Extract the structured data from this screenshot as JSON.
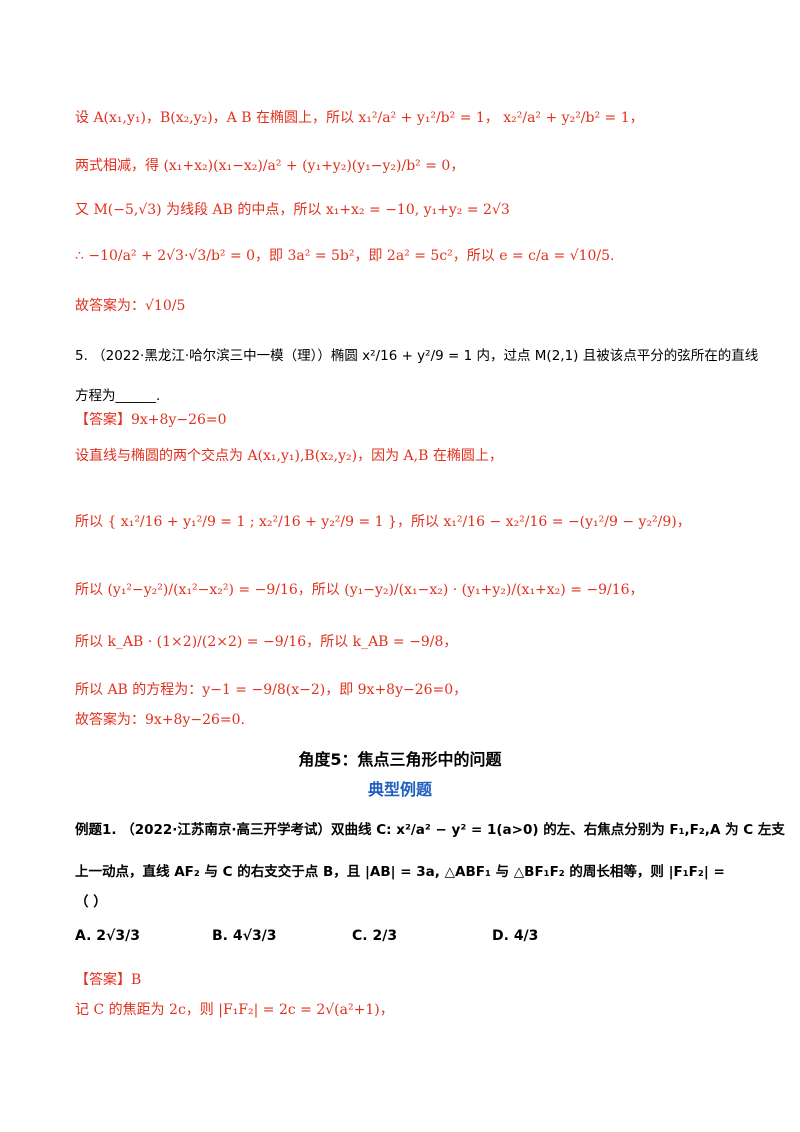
{
  "lines": {
    "l1": "设 A(x₁,y₁)，B(x₂,y₂)，A B 在椭圆上，所以 x₁²/a² + y₁²/b² = 1， x₂²/a² + y₂²/b² = 1，",
    "l2": "两式相减，得 (x₁+x₂)(x₁−x₂)/a² + (y₁+y₂)(y₁−y₂)/b² = 0，",
    "l3": "又 M(−5,√3) 为线段 AB 的中点，所以 x₁+x₂ = −10, y₁+y₂ = 2√3",
    "l4": "∴ −10/a² + 2√3·√3/b² = 0，即 3a² = 5b²，即 2a² = 5c²，所以 e = c/a = √10/5.",
    "l5": "故答案为：√10/5",
    "q5": "5.  （2022·黑龙江·哈尔滨三中一模（理））椭圆 x²/16 + y²/9 = 1 内，过点 M(2,1) 且被该点平分的弦所在的直线",
    "q5b": "方程为______.",
    "ans5": "【答案】9x+8y−26=0",
    "s1": "设直线与椭圆的两个交点为 A(x₁,y₁),B(x₂,y₂)，因为 A,B 在椭圆上，",
    "s2": "所以 { x₁²/16 + y₁²/9 = 1 ; x₂²/16 + y₂²/9 = 1 }，所以 x₁²/16 − x₂²/16 = −(y₁²/9 − y₂²/9)，",
    "s3": "所以 (y₁²−y₂²)/(x₁²−x₂²) = −9/16，所以 (y₁−y₂)/(x₁−x₂) · (y₁+y₂)/(x₁+x₂) = −9/16，",
    "s4": "所以 k_AB · (1×2)/(2×2) = −9/16，所以 k_AB = −9/8，",
    "s5": "所以 AB 的方程为：y−1 = −9/8(x−2)，即 9x+8y−26=0，",
    "s6": "故答案为：9x+8y−26=0."
  },
  "heading": "角度5：焦点三角形中的问题",
  "subheading": "典型例题",
  "ex1": {
    "line1": "例题1.  （2022·江苏南京·高三开学考试）双曲线 C: x²/a² − y² = 1(a>0) 的左、右焦点分别为 F₁,F₂,A 为 C 左支",
    "line2": "上一动点，直线 AF₂ 与 C 的右支交于点 B，且 |AB| = 3a, △ABF₁ 与 △BF₁F₂ 的周长相等，则 |F₁F₂| =",
    "paren": "（            ）",
    "options": [
      "A.  2√3/3",
      "B.  4√3/3",
      "C.  2/3",
      "D.  4/3"
    ],
    "answer": "【答案】B",
    "sol": "记 C 的焦距为 2c，则 |F₁F₂| = 2c = 2√(a²+1)，"
  },
  "colors": {
    "accent_red": "#e0301e",
    "heading_blue": "#1f5fbf",
    "text": "#000000"
  }
}
